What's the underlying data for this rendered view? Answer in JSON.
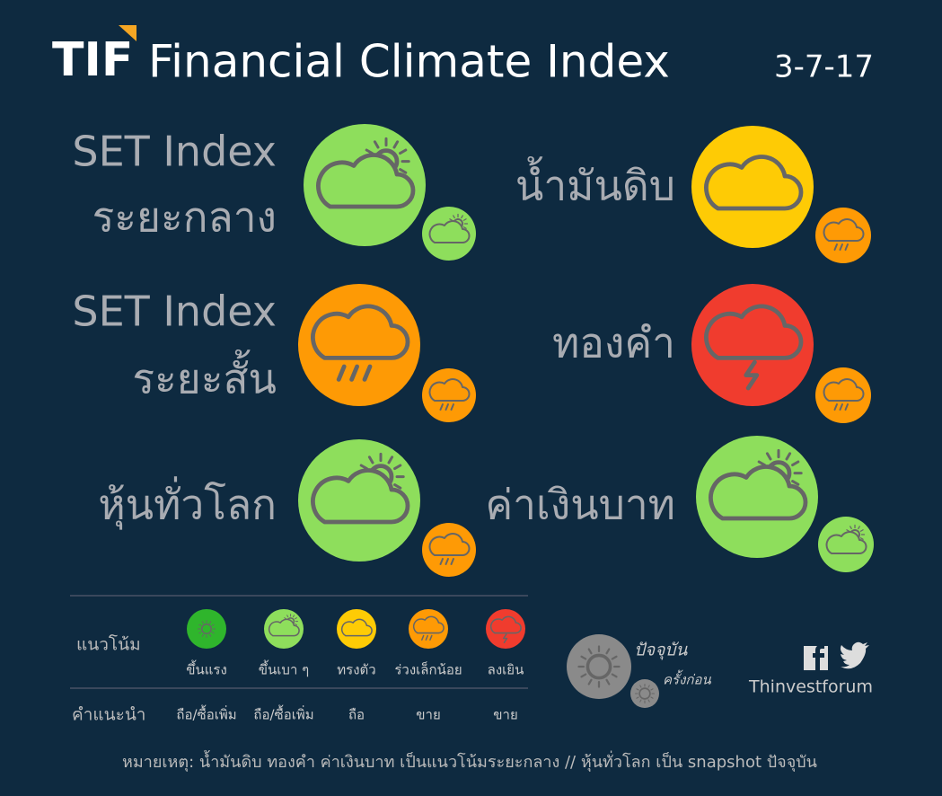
{
  "header": {
    "brand": "TIF",
    "title": "Financial Climate Index",
    "date": "3-7-17"
  },
  "indicators": [
    {
      "label": [
        "SET Index",
        "ระยะกลาง"
      ],
      "current_color": "#8ede5c",
      "previous_color": "#8ede5c"
    },
    {
      "label": [
        "น้ำมันดิบ"
      ],
      "current_color": "#fecb05",
      "previous_color": "#fe9a05"
    },
    {
      "label": [
        "SET Index",
        "ระยะสั้น"
      ],
      "current_color": "#fe9a05",
      "previous_color": "#fe9a05"
    },
    {
      "label": [
        "ทองคำ"
      ],
      "current_color": "#f03c2e",
      "previous_color": "#fe9a05"
    },
    {
      "label": [
        "หุ้นทั่วโลก"
      ],
      "current_color": "#8ede5c",
      "previous_color": "#fe9a05"
    },
    {
      "label": [
        "ค่าเงินบาท"
      ],
      "current_color": "#8ede5c",
      "previous_color": "#8ede5c"
    }
  ],
  "legend": {
    "trend_label": "แนวโน้ม",
    "advice_label": "คำแนะนำ",
    "items": [
      {
        "label": "ขึ้นแรง",
        "advice": "ถือ/ซื้อเพิ่ม",
        "color": "#2fb52c"
      },
      {
        "label": "ขึ้นเบา ๆ",
        "advice": "ถือ/ซื้อเพิ่ม",
        "color": "#8ede5c"
      },
      {
        "label": "ทรงตัว",
        "advice": "ถือ",
        "color": "#fecb05"
      },
      {
        "label": "ร่วงเล็กน้อย",
        "advice": "ขาย",
        "color": "#fe9a05"
      },
      {
        "label": "ลงเยิน",
        "advice": "ขาย",
        "color": "#f03c2e"
      }
    ]
  },
  "key": {
    "current": "ปัจจุบัน",
    "previous": "ครั้งก่อน"
  },
  "social": "Thinvestforum",
  "note": "หมายเหตุ: น้ำมันดิบ ทองคำ ค่าเงินบาท เป็นแนวโน้มระยะกลาง // หุ้นทั่วโลก เป็น snapshot ปัจจุบัน"
}
